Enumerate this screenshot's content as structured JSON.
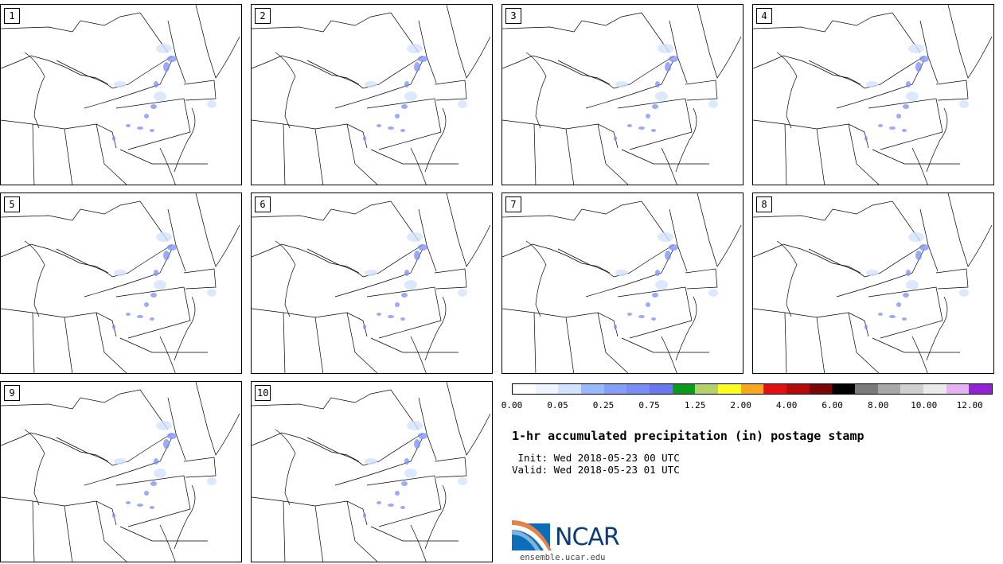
{
  "panels": [
    {
      "label": "1"
    },
    {
      "label": "2"
    },
    {
      "label": "3"
    },
    {
      "label": "4"
    },
    {
      "label": "5"
    },
    {
      "label": "6"
    },
    {
      "label": "7"
    },
    {
      "label": "8"
    },
    {
      "label": "9"
    },
    {
      "label": "10"
    }
  ],
  "colorbar": {
    "colors": [
      "#ffffff",
      "#eef5ff",
      "#d3e3fd",
      "#9ab9fb",
      "#859ffa",
      "#7a8ef7",
      "#6a78f0",
      "#0a9a1c",
      "#b3d36a",
      "#ffff1e",
      "#fba71d",
      "#e50e10",
      "#b60a0a",
      "#7a0606",
      "#000000",
      "#7a7a7a",
      "#a8a8a8",
      "#cfcfcf",
      "#eaeaea",
      "#e5b3f2",
      "#9521d6"
    ],
    "tick_labels": [
      "0.00",
      "0.05",
      "0.25",
      "0.75",
      "1.25",
      "2.00",
      "4.00",
      "6.00",
      "8.00",
      "10.00",
      "12.00"
    ]
  },
  "title": "1-hr accumulated precipitation (in) postage stamp",
  "init_text": " Init: Wed 2018-05-23 00 UTC",
  "valid_text": "Valid: Wed 2018-05-23 01 UTC",
  "logo": {
    "text": "NCAR",
    "url": "ensemble.ucar.edu"
  }
}
